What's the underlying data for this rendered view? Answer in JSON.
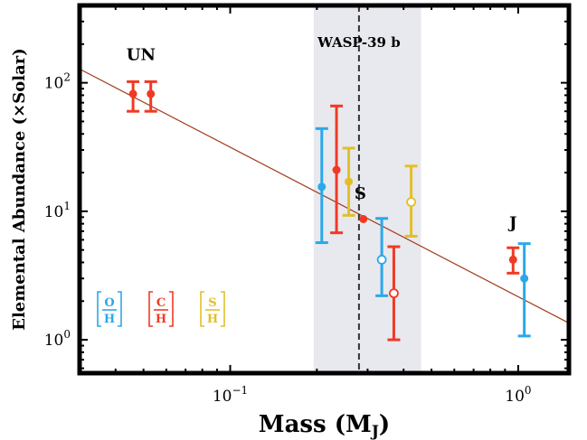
{
  "chart_data": {
    "type": "scatter",
    "title": "",
    "xlabel": "Mass (M",
    "xlabel_sub": "J",
    "xlabel_close": ")",
    "ylabel": "Elemental Abundance (×Solar)",
    "xscale": "log",
    "yscale": "log",
    "xlim": [
      0.03,
      1.5
    ],
    "ylim": [
      0.55,
      400
    ],
    "x_ticks": [
      {
        "value": 0.1,
        "base": "10",
        "exp": "−1"
      },
      {
        "value": 1,
        "base": "10",
        "exp": "0"
      }
    ],
    "y_ticks": [
      {
        "value": 1,
        "base": "10",
        "exp": "0"
      },
      {
        "value": 10,
        "base": "10",
        "exp": "1"
      },
      {
        "value": 100,
        "base": "10",
        "exp": "2"
      }
    ],
    "grid": false,
    "shaded_band": {
      "x_range": [
        0.195,
        0.46
      ],
      "color": "#e8e9ee"
    },
    "vertical_line": {
      "x": 0.28,
      "label": "WASP-39 b",
      "style": "dashed"
    },
    "trend_line": {
      "points": [
        [
          0.03,
          128
        ],
        [
          1.5,
          1.35
        ]
      ],
      "color": "#a03c1c"
    },
    "planet_labels": [
      {
        "text": "UN",
        "x": 0.049,
        "y": 150
      },
      {
        "text": "S",
        "x": 0.283,
        "y": 12.5
      },
      {
        "text": "J",
        "x": 0.96,
        "y": 7.4
      }
    ],
    "legend": {
      "placement": "bottom-left",
      "entries": [
        {
          "num": "O",
          "den": "H",
          "color": "#2aa8ea"
        },
        {
          "num": "C",
          "den": "H",
          "color": "#f03a24"
        },
        {
          "num": "S",
          "den": "H",
          "color": "#e2bf2a"
        }
      ]
    },
    "series": [
      {
        "element": "O",
        "color": "#2aa8ea",
        "points": [
          {
            "x": 0.208,
            "y": 15.5,
            "ylo": 5.7,
            "yhi": 44,
            "filled": true
          },
          {
            "x": 0.336,
            "y": 4.2,
            "ylo": 2.2,
            "yhi": 8.8,
            "filled": false
          },
          {
            "x": 1.05,
            "y": 3.0,
            "ylo": 1.07,
            "yhi": 5.6,
            "filled": true
          }
        ]
      },
      {
        "element": "C",
        "color": "#f03a24",
        "points": [
          {
            "x": 0.046,
            "y": 82,
            "ylo": 60,
            "yhi": 102,
            "filled": true
          },
          {
            "x": 0.053,
            "y": 82,
            "ylo": 60,
            "yhi": 102,
            "filled": true
          },
          {
            "x": 0.234,
            "y": 21,
            "ylo": 6.8,
            "yhi": 66,
            "filled": true
          },
          {
            "x": 0.29,
            "y": 8.7,
            "ylo": null,
            "yhi": null,
            "filled": true
          },
          {
            "x": 0.37,
            "y": 2.3,
            "ylo": 1.0,
            "yhi": 5.3,
            "filled": false
          },
          {
            "x": 0.96,
            "y": 4.2,
            "ylo": 3.3,
            "yhi": 5.2,
            "filled": true
          }
        ]
      },
      {
        "element": "S",
        "color": "#e2bf2a",
        "points": [
          {
            "x": 0.258,
            "y": 17,
            "ylo": 9.3,
            "yhi": 31,
            "filled": true
          },
          {
            "x": 0.425,
            "y": 11.8,
            "ylo": 6.4,
            "yhi": 22.5,
            "filled": false
          }
        ]
      }
    ]
  }
}
